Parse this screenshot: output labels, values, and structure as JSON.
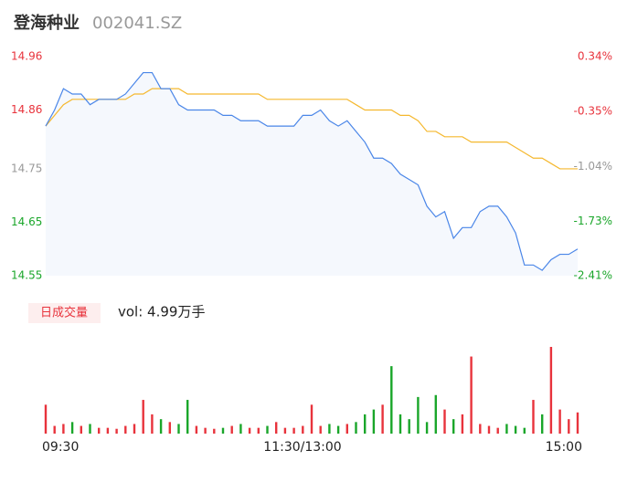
{
  "chart_data": {
    "type": "line",
    "title": "登海种业",
    "subtitle": "002041.SZ",
    "xlim": [
      0,
      240
    ],
    "xticks": [
      {
        "value": 0,
        "label": "09:30"
      },
      {
        "value": 120,
        "label": "11:30/13:00"
      },
      {
        "value": 240,
        "label": "15:00"
      }
    ],
    "x": [
      0,
      4,
      8,
      12,
      16,
      20,
      24,
      28,
      32,
      36,
      40,
      44,
      48,
      52,
      56,
      60,
      64,
      68,
      72,
      76,
      80,
      84,
      88,
      92,
      96,
      100,
      104,
      108,
      112,
      116,
      120,
      124,
      128,
      132,
      136,
      140,
      144,
      148,
      152,
      156,
      160,
      164,
      168,
      172,
      176,
      180,
      184,
      188,
      192,
      196,
      200,
      204,
      208,
      212,
      216,
      220,
      224,
      228,
      232,
      236,
      240
    ],
    "ylim": [
      14.55,
      14.96
    ],
    "yticks": [
      14.55,
      14.65,
      14.75,
      14.86,
      14.96
    ],
    "ytick_colors": [
      "#1aa62a",
      "#1aa62a",
      "#999999",
      "#e8333c",
      "#e8333c"
    ],
    "y2lim": [
      -2.41,
      0.34
    ],
    "y2ticks": [
      {
        "value": -2.41,
        "label": "-2.41%"
      },
      {
        "value": -1.73,
        "label": "-1.73%"
      },
      {
        "value": -1.04,
        "label": "-1.04%"
      },
      {
        "value": -0.35,
        "label": "-0.35%"
      },
      {
        "value": 0.34,
        "label": "0.34%"
      }
    ],
    "series": [
      {
        "name": "price",
        "color": "#4a86e8",
        "values": [
          14.83,
          14.86,
          14.9,
          14.89,
          14.89,
          14.87,
          14.88,
          14.88,
          14.88,
          14.89,
          14.91,
          14.93,
          14.93,
          14.9,
          14.9,
          14.87,
          14.86,
          14.86,
          14.86,
          14.86,
          14.85,
          14.85,
          14.84,
          14.84,
          14.84,
          14.83,
          14.83,
          14.83,
          14.83,
          14.85,
          14.85,
          14.86,
          14.84,
          14.83,
          14.84,
          14.82,
          14.8,
          14.77,
          14.77,
          14.76,
          14.74,
          14.73,
          14.72,
          14.68,
          14.66,
          14.67,
          14.62,
          14.64,
          14.64,
          14.67,
          14.68,
          14.68,
          14.66,
          14.63,
          14.57,
          14.57,
          14.56,
          14.58,
          14.59,
          14.59,
          14.6
        ]
      },
      {
        "name": "average",
        "color": "#f5b82e",
        "values": [
          14.83,
          14.85,
          14.87,
          14.88,
          14.88,
          14.88,
          14.88,
          14.88,
          14.88,
          14.88,
          14.89,
          14.89,
          14.9,
          14.9,
          14.9,
          14.9,
          14.89,
          14.89,
          14.89,
          14.89,
          14.89,
          14.89,
          14.89,
          14.89,
          14.89,
          14.88,
          14.88,
          14.88,
          14.88,
          14.88,
          14.88,
          14.88,
          14.88,
          14.88,
          14.88,
          14.87,
          14.86,
          14.86,
          14.86,
          14.86,
          14.85,
          14.85,
          14.84,
          14.82,
          14.82,
          14.81,
          14.81,
          14.81,
          14.8,
          14.8,
          14.8,
          14.8,
          14.8,
          14.79,
          14.78,
          14.77,
          14.77,
          14.76,
          14.75,
          14.75,
          14.75
        ]
      }
    ],
    "fill_color": "#f5f8fd",
    "volume": {
      "button": "日成交量",
      "label": "vol: 4.99万手",
      "up_color": "#e8333c",
      "down_color": "#1aa62a",
      "values": [
        30,
        8,
        10,
        12,
        8,
        10,
        6,
        6,
        5,
        8,
        10,
        35,
        20,
        15,
        12,
        10,
        35,
        8,
        6,
        5,
        6,
        8,
        10,
        6,
        6,
        8,
        12,
        6,
        6,
        8,
        30,
        8,
        10,
        8,
        10,
        12,
        20,
        25,
        30,
        70,
        20,
        15,
        38,
        12,
        40,
        25,
        15,
        20,
        80,
        10,
        8,
        6,
        10,
        8,
        6,
        35,
        20,
        90,
        25,
        15,
        22
      ]
    }
  }
}
